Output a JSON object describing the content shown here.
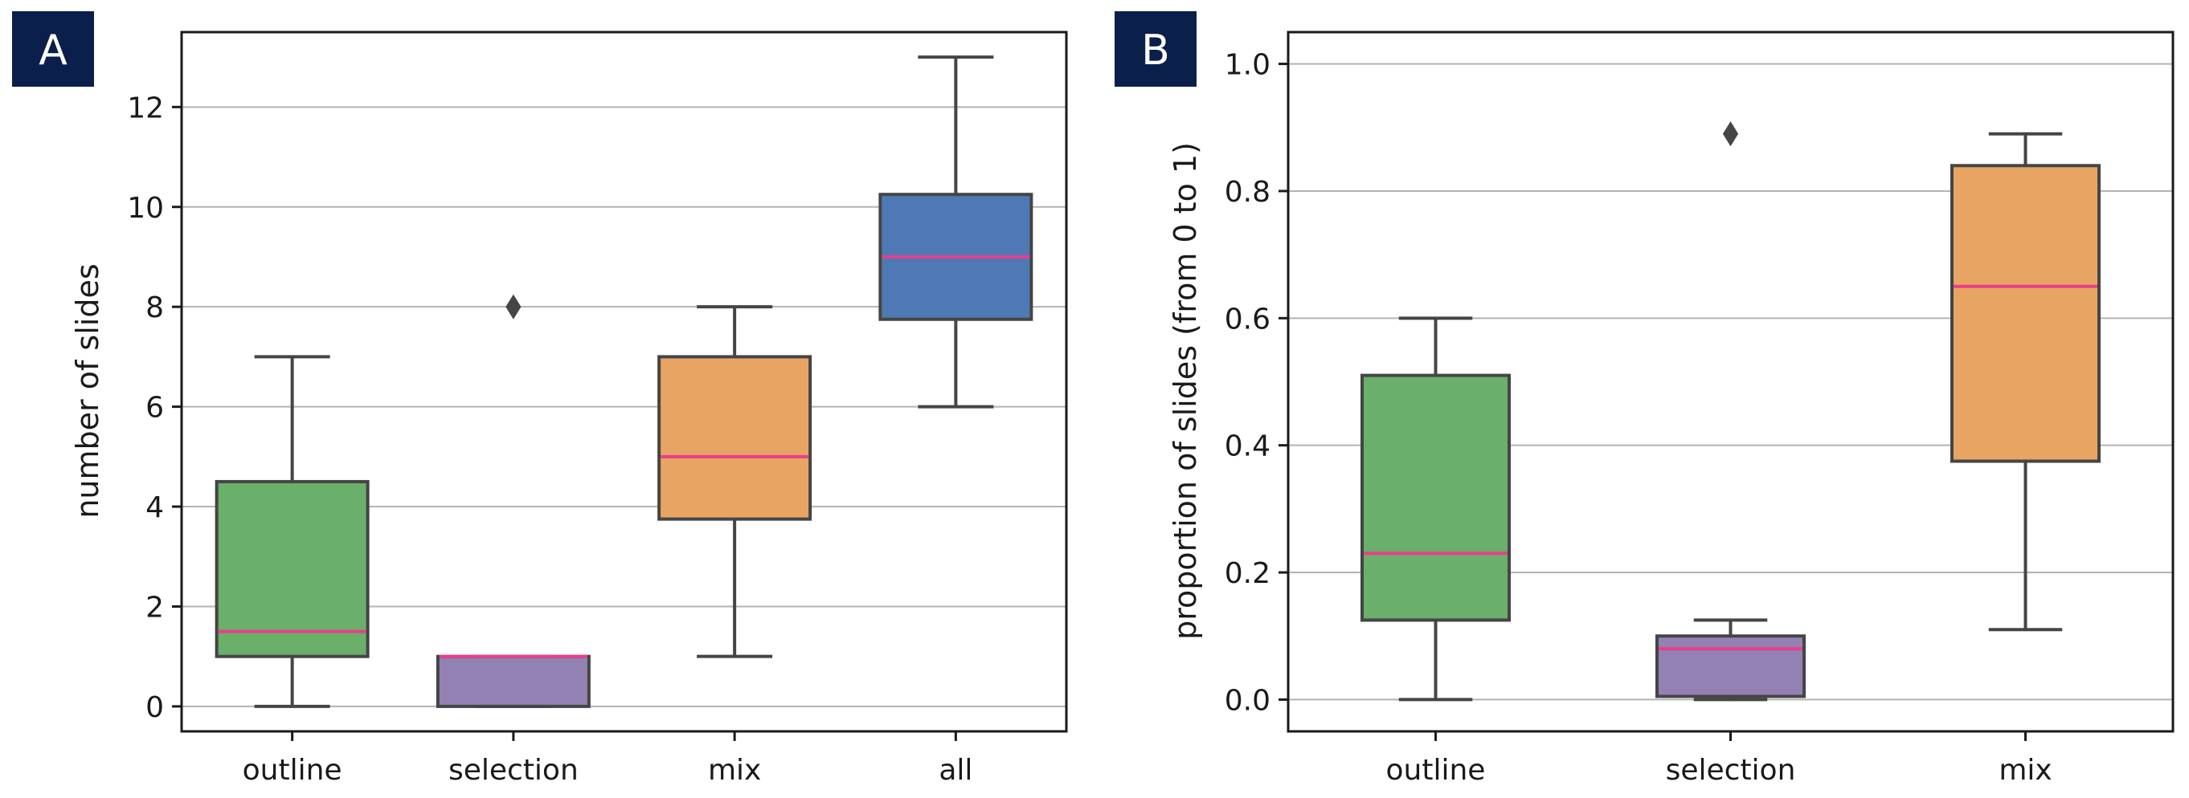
{
  "chart_data": [
    {
      "panel_label": "A",
      "type": "box",
      "title": "",
      "xlabel": "",
      "ylabel": "number of slides",
      "ylim": [
        -0.5,
        13.5
      ],
      "yticks": [
        0,
        2,
        4,
        6,
        8,
        10,
        12
      ],
      "grid": "y",
      "categories": [
        "outline",
        "selection",
        "mix",
        "all"
      ],
      "boxes": [
        {
          "category": "outline",
          "color": "#6AAF6A",
          "whisker_low": 0,
          "q1": 1,
          "median": 1.5,
          "q3": 4.5,
          "whisker_high": 7,
          "outliers": []
        },
        {
          "category": "selection",
          "color": "#9481B3",
          "whisker_low": 0,
          "q1": 0,
          "median": 1,
          "q3": 1,
          "whisker_high": 1,
          "outliers": [
            8
          ]
        },
        {
          "category": "mix",
          "color": "#E8A462",
          "whisker_low": 1,
          "q1": 3.75,
          "median": 5,
          "q3": 7,
          "whisker_high": 8,
          "outliers": []
        },
        {
          "category": "all",
          "color": "#4E79B5",
          "whisker_low": 6,
          "q1": 7.75,
          "median": 9,
          "q3": 10.25,
          "whisker_high": 13,
          "outliers": []
        }
      ]
    },
    {
      "panel_label": "B",
      "type": "box",
      "title": "",
      "xlabel": "",
      "ylabel": "proportion of slides (from 0 to 1)",
      "ylim": [
        -0.05,
        1.05
      ],
      "yticks": [
        "0.0",
        "0.2",
        "0.4",
        "0.6",
        "0.8",
        "1.0"
      ],
      "grid": "y",
      "categories": [
        "outline",
        "selection",
        "mix"
      ],
      "boxes": [
        {
          "category": "outline",
          "color": "#6AAF6A",
          "whisker_low": 0,
          "q1": 0.125,
          "median": 0.23,
          "q3": 0.51,
          "whisker_high": 0.6,
          "outliers": []
        },
        {
          "category": "selection",
          "color": "#9481B3",
          "whisker_low": 0,
          "q1": 0.005,
          "median": 0.08,
          "q3": 0.1,
          "whisker_high": 0.125,
          "outliers": [
            0.89
          ]
        },
        {
          "category": "mix",
          "color": "#E8A462",
          "whisker_low": 0.11,
          "q1": 0.375,
          "median": 0.65,
          "q3": 0.84,
          "whisker_high": 0.89,
          "outliers": []
        }
      ]
    }
  ],
  "colors": {
    "median_line": "#E83E8C",
    "box_edge": "#454545",
    "grid": "#B3B3B3",
    "panel_badge": "#0B1F4D"
  }
}
